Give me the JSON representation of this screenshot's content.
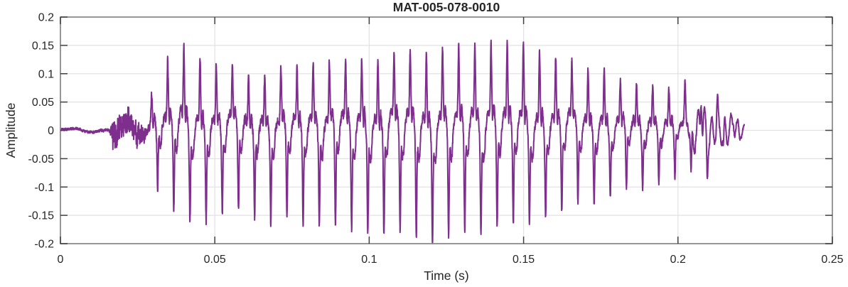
{
  "chart_data": {
    "type": "line",
    "title": "MAT-005-078-0010",
    "xlabel": "Time (s)",
    "ylabel": "Amplitude",
    "xlim": [
      0,
      0.25
    ],
    "ylim": [
      -0.2,
      0.2
    ],
    "xticks": [
      0,
      0.05,
      0.1,
      0.15,
      0.2,
      0.25
    ],
    "xtick_labels": [
      "0",
      "0.05",
      "0.1",
      "0.15",
      "0.2",
      "0.25"
    ],
    "yticks": [
      -0.2,
      -0.15,
      -0.1,
      -0.05,
      0,
      0.05,
      0.1,
      0.15,
      0.2
    ],
    "ytick_labels": [
      "-0.2",
      "-0.15",
      "-0.1",
      "-0.05",
      "0",
      "0.05",
      "0.1",
      "0.15",
      "0.2"
    ],
    "grid": true,
    "legend": null,
    "line_color": "#7E2F8E",
    "line_width": 2,
    "frame_color": "#8c8c8c",
    "tick_color": "#404040",
    "grid_color": "#e2e2e2",
    "label_color": "#262626",
    "signal": {
      "description": "Voiced acoustic waveform: near-zero until 0.017 s, small noise burst 0.017-0.027 s, periodic glottal-pulse oscillation ~191 Hz from 0.028 s growing to +0.155/-0.19 peak amplitude around 0.115-0.155 s, decaying with a ~470 Hz ringing tail, ending at 0.2215 s",
      "fundamental_hz": 191,
      "onset_s": 0.0295,
      "onset_phase": 0.28,
      "end_s": 0.2215,
      "sample_dt_s": 4e-05,
      "pulse_shape": [
        {
          "center": 0.28,
          "width": 0.055,
          "amp": 1.0
        },
        {
          "center": 0.1,
          "width": 0.07,
          "amp": 0.26
        },
        {
          "center": 0.45,
          "width": 0.055,
          "amp": 0.3
        },
        {
          "center": 0.66,
          "width": 0.05,
          "amp": -1.0
        },
        {
          "center": 0.84,
          "width": 0.08,
          "amp": -0.3
        },
        {
          "center": 0.94,
          "width": 0.04,
          "amp": 0.1
        }
      ],
      "ripple": {
        "mult": 6,
        "amp": 0.05,
        "phase": 1.0
      },
      "envelope_pos": [
        [
          0,
          0
        ],
        [
          0.027,
          0
        ],
        [
          0.029,
          0.05
        ],
        [
          0.031,
          0.09
        ],
        [
          0.034,
          0.12
        ],
        [
          0.038,
          0.135
        ],
        [
          0.042,
          0.145
        ],
        [
          0.047,
          0.13
        ],
        [
          0.051,
          0.115
        ],
        [
          0.057,
          0.105
        ],
        [
          0.065,
          0.095
        ],
        [
          0.072,
          0.11
        ],
        [
          0.08,
          0.115
        ],
        [
          0.09,
          0.12
        ],
        [
          0.1,
          0.13
        ],
        [
          0.11,
          0.135
        ],
        [
          0.12,
          0.142
        ],
        [
          0.128,
          0.148
        ],
        [
          0.136,
          0.152
        ],
        [
          0.145,
          0.153
        ],
        [
          0.153,
          0.152
        ],
        [
          0.16,
          0.13
        ],
        [
          0.166,
          0.115
        ],
        [
          0.172,
          0.11
        ],
        [
          0.177,
          0.105
        ],
        [
          0.182,
          0.085
        ],
        [
          0.19,
          0.08
        ],
        [
          0.198,
          0.073
        ],
        [
          0.204,
          0.075
        ],
        [
          0.209,
          0.065
        ],
        [
          0.213,
          0.04
        ],
        [
          0.217,
          0.015
        ],
        [
          0.2215,
          0.006
        ]
      ],
      "envelope_neg": [
        [
          0,
          0
        ],
        [
          0.027,
          0
        ],
        [
          0.029,
          0.06
        ],
        [
          0.031,
          0.1
        ],
        [
          0.035,
          0.135
        ],
        [
          0.04,
          0.16
        ],
        [
          0.047,
          0.155
        ],
        [
          0.055,
          0.15
        ],
        [
          0.065,
          0.155
        ],
        [
          0.075,
          0.165
        ],
        [
          0.085,
          0.17
        ],
        [
          0.095,
          0.175
        ],
        [
          0.105,
          0.18
        ],
        [
          0.115,
          0.192
        ],
        [
          0.125,
          0.192
        ],
        [
          0.133,
          0.185
        ],
        [
          0.14,
          0.177
        ],
        [
          0.15,
          0.165
        ],
        [
          0.16,
          0.148
        ],
        [
          0.17,
          0.13
        ],
        [
          0.18,
          0.112
        ],
        [
          0.19,
          0.1
        ],
        [
          0.198,
          0.085
        ],
        [
          0.205,
          0.08
        ],
        [
          0.21,
          0.06
        ],
        [
          0.214,
          0.04
        ],
        [
          0.218,
          0.02
        ],
        [
          0.2215,
          0.008
        ]
      ],
      "noise_slow": {
        "components": [
          [
            55,
            0.5,
            1.3
          ],
          [
            118,
            0.35,
            4.0
          ],
          [
            37,
            0.3,
            0.7
          ]
        ],
        "amp": [
          [
            0,
            0.004
          ],
          [
            0.014,
            0.0045
          ],
          [
            0.016,
            0.012
          ],
          [
            0.018,
            0.028
          ],
          [
            0.025,
            0.026
          ],
          [
            0.027,
            0.012
          ],
          [
            0.05,
            0.008
          ],
          [
            0.15,
            0.008
          ],
          [
            0.2,
            0.006
          ],
          [
            0.2215,
            0.003
          ]
        ]
      },
      "noise_fast": {
        "seed": 42,
        "amp": [
          [
            0,
            0.0015
          ],
          [
            0.016,
            0.002
          ],
          [
            0.017,
            0.022
          ],
          [
            0.0255,
            0.018
          ],
          [
            0.028,
            0.007
          ],
          [
            0.2,
            0.005
          ],
          [
            0.2215,
            0.002
          ]
        ]
      },
      "tail": {
        "freq_hz": 470,
        "phase": 1.0,
        "amp": [
          [
            0,
            0
          ],
          [
            0.198,
            0
          ],
          [
            0.205,
            0.02
          ],
          [
            0.21,
            0.03
          ],
          [
            0.215,
            0.028
          ],
          [
            0.219,
            0.015
          ],
          [
            0.2215,
            0.008
          ]
        ]
      }
    }
  }
}
